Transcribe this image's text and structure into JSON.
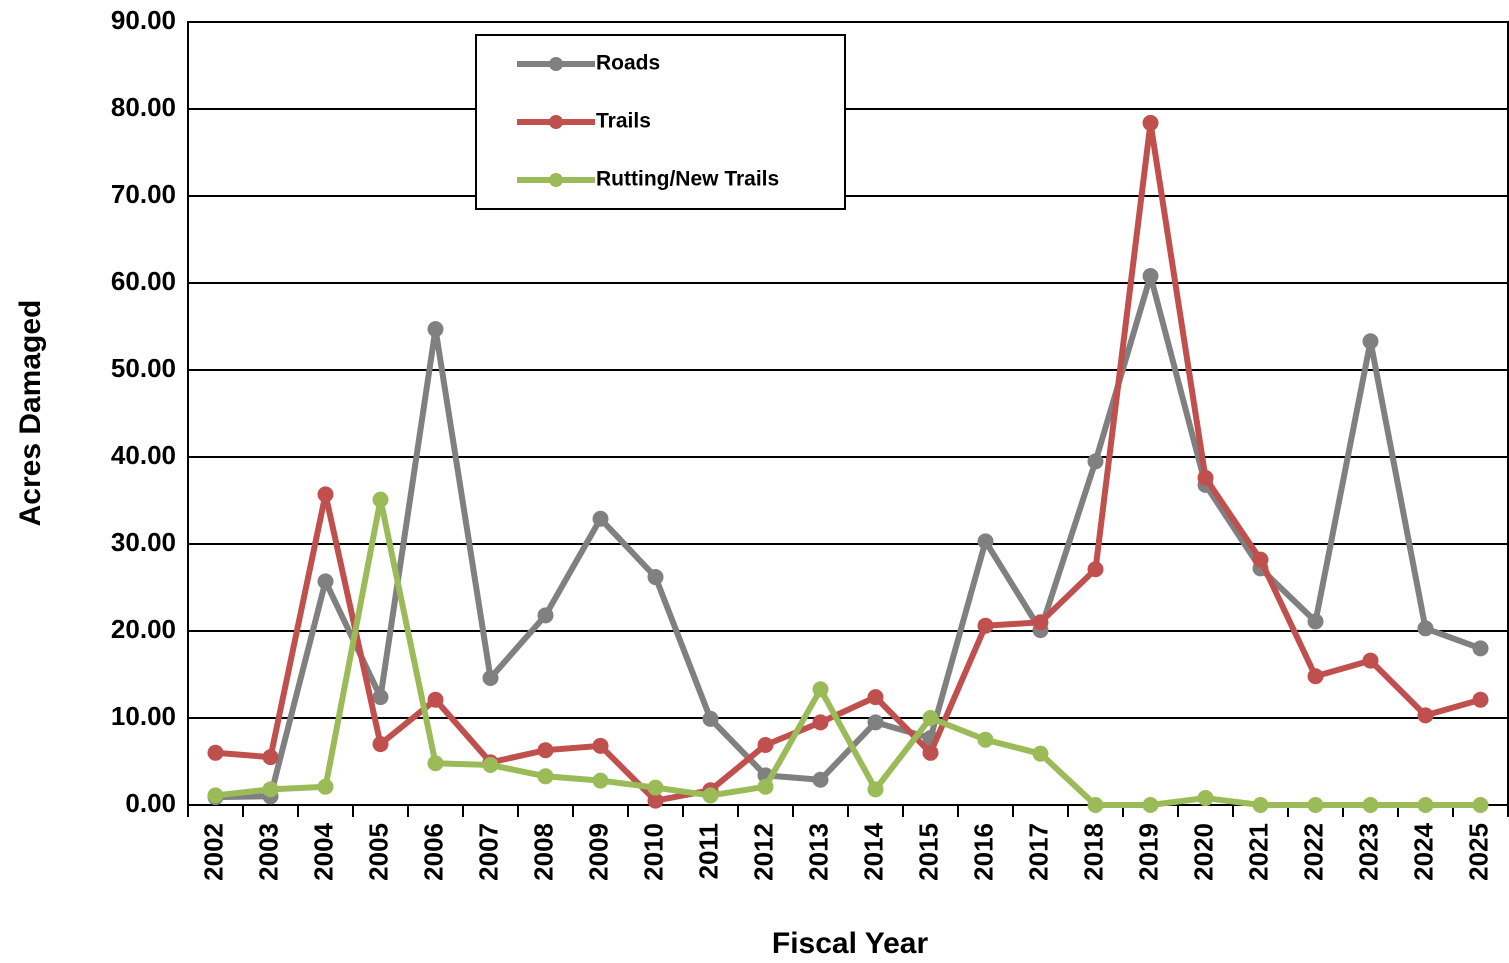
{
  "chart_data": {
    "type": "line",
    "x_label": "Fiscal Year",
    "y_label": "Acres Damaged",
    "categories": [
      "2002",
      "2003",
      "2004",
      "2005",
      "2006",
      "2007",
      "2008",
      "2009",
      "2010",
      "2011",
      "2012",
      "2013",
      "2014",
      "2015",
      "2016",
      "2017",
      "2018",
      "2019",
      "2020",
      "2021",
      "2022",
      "2023",
      "2024",
      "2025"
    ],
    "series": [
      {
        "name": "Roads",
        "color": "#808080",
        "values": [
          0.9,
          1.0,
          25.7,
          12.4,
          54.7,
          14.6,
          21.8,
          32.9,
          26.2,
          9.9,
          3.4,
          2.9,
          9.5,
          7.7,
          30.3,
          20.1,
          39.5,
          60.8,
          36.8,
          27.2,
          21.1,
          53.3,
          20.3,
          18.0
        ]
      },
      {
        "name": "Trails",
        "color": "#c0504d",
        "values": [
          6.0,
          5.5,
          35.7,
          7.0,
          12.1,
          4.9,
          6.3,
          6.8,
          0.5,
          1.7,
          6.9,
          9.5,
          12.4,
          6.0,
          20.6,
          21.0,
          27.1,
          78.4,
          37.6,
          28.2,
          14.8,
          16.6,
          10.3,
          12.1
        ]
      },
      {
        "name": "Rutting/New Trails",
        "color": "#9bbb59",
        "values": [
          1.1,
          1.8,
          2.1,
          35.1,
          4.8,
          4.6,
          3.3,
          2.8,
          2.0,
          1.1,
          2.1,
          13.3,
          1.8,
          10.0,
          7.5,
          5.9,
          0,
          0,
          0.8,
          0,
          0,
          0,
          0,
          0
        ]
      }
    ],
    "ylim": [
      0,
      90
    ],
    "yticks": [
      {
        "value": 0,
        "label": "0.00"
      },
      {
        "value": 10,
        "label": "10.00"
      },
      {
        "value": 20,
        "label": "20.00"
      },
      {
        "value": 30,
        "label": "30.00"
      },
      {
        "value": 40,
        "label": "40.00"
      },
      {
        "value": 50,
        "label": "50.00"
      },
      {
        "value": 60,
        "label": "60.00"
      },
      {
        "value": 70,
        "label": "70.00"
      },
      {
        "value": 80,
        "label": "80.00"
      },
      {
        "value": 90,
        "label": "90.00"
      }
    ],
    "grid": true,
    "legend": "top"
  }
}
